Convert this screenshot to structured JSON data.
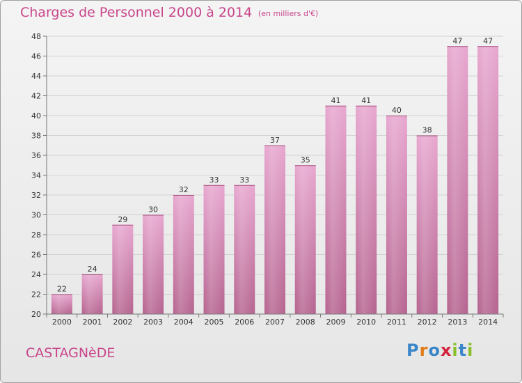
{
  "header": {
    "title": "Charges de Personnel 2000 à 2014",
    "subtitle": "(en milliers d'€)"
  },
  "footer": {
    "commune": "CASTAGNèDE",
    "logo_letters": [
      {
        "ch": "P",
        "color": "#3a86c8"
      },
      {
        "ch": "r",
        "color": "#e07b1a"
      },
      {
        "ch": "o",
        "color": "#3a86c8"
      },
      {
        "ch": "x",
        "color": "#d4243e"
      },
      {
        "ch": "i",
        "color": "#8bbf2a"
      },
      {
        "ch": "t",
        "color": "#3a86c8"
      },
      {
        "ch": "i",
        "color": "#8bbf2a"
      }
    ]
  },
  "chart_data": {
    "type": "bar",
    "title": "Charges de Personnel 2000 à 2014",
    "subtitle": "(en milliers d'€)",
    "categories": [
      "2000",
      "2001",
      "2002",
      "2003",
      "2004",
      "2005",
      "2006",
      "2007",
      "2008",
      "2009",
      "2010",
      "2011",
      "2012",
      "2013",
      "2014"
    ],
    "values": [
      22,
      24,
      29,
      30,
      32,
      33,
      33,
      37,
      35,
      41,
      41,
      40,
      38,
      47,
      47
    ],
    "ylim": [
      20,
      48
    ],
    "yticks": [
      20,
      22,
      24,
      26,
      28,
      30,
      32,
      34,
      36,
      38,
      40,
      42,
      44,
      46,
      48
    ],
    "grid": true,
    "bar_color": "#d98dbb"
  }
}
